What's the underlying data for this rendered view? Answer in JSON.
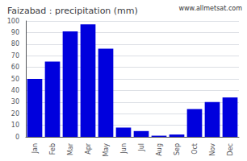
{
  "chart_data": {
    "type": "bar",
    "title": "Faizabad : precipitation (mm)",
    "annotation": "www.allmetsat.com",
    "categories": [
      "Jan",
      "Feb",
      "Mar",
      "Apr",
      "May",
      "Jun",
      "Jul",
      "Aug",
      "Sep",
      "Oct",
      "Nov",
      "Dec"
    ],
    "values": [
      50,
      65,
      91,
      97,
      76,
      8,
      5,
      1,
      2,
      24,
      30,
      34
    ],
    "color": "#0000dd",
    "ylim": [
      0,
      100
    ],
    "yticks": [
      0,
      10,
      20,
      30,
      40,
      50,
      60,
      70,
      80,
      90,
      100
    ],
    "grid": true
  }
}
